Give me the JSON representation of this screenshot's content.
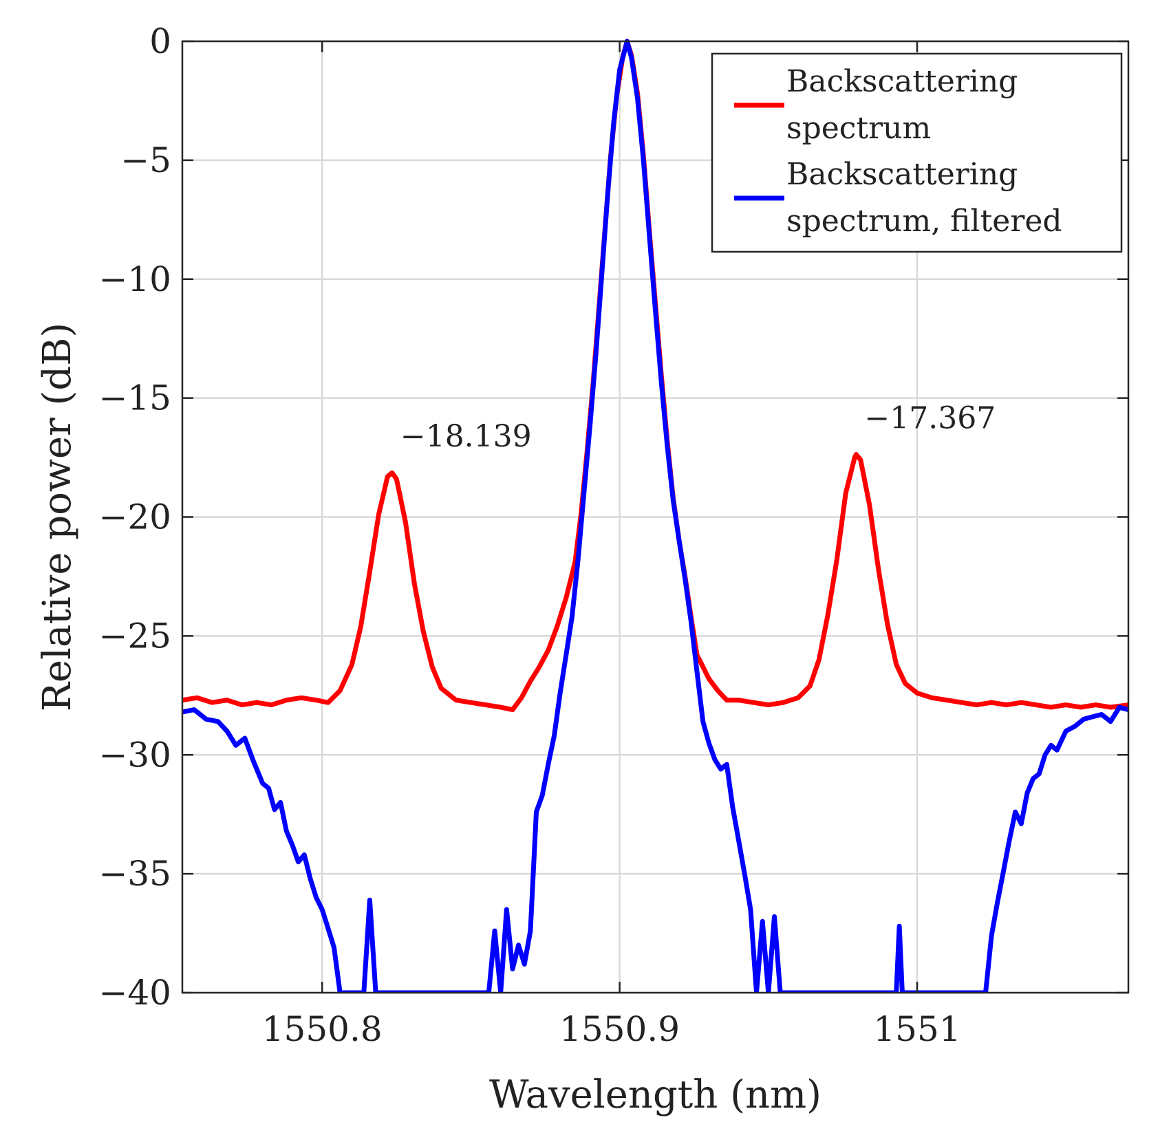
{
  "chart_data": {
    "type": "line",
    "xlabel": "Wavelength (nm)",
    "ylabel": "Relative power (dB)",
    "xlim": [
      1550.753,
      1551.071
    ],
    "ylim": [
      -40,
      0
    ],
    "xticks": [
      1550.8,
      1550.9,
      1551
    ],
    "xtick_labels": [
      "1550.8",
      "1550.9",
      "1551"
    ],
    "yticks": [
      0,
      -5,
      -10,
      -15,
      -20,
      -25,
      -30,
      -35,
      -40
    ],
    "ytick_labels": [
      "0",
      "−5",
      "−10",
      "−15",
      "−20",
      "−25",
      "−30",
      "−35",
      "−40"
    ],
    "grid": true,
    "legend": "top-right",
    "colors": {
      "red": "#ff0000",
      "blue": "#0000ff"
    },
    "series": [
      {
        "name": "Backscattering spectrum",
        "color": "#ff0000",
        "points": [
          [
            1550.753,
            -27.7
          ],
          [
            1550.758,
            -27.6
          ],
          [
            1550.763,
            -27.8
          ],
          [
            1550.768,
            -27.7
          ],
          [
            1550.773,
            -27.9
          ],
          [
            1550.778,
            -27.8
          ],
          [
            1550.783,
            -27.9
          ],
          [
            1550.788,
            -27.7
          ],
          [
            1550.793,
            -27.6
          ],
          [
            1550.798,
            -27.7
          ],
          [
            1550.802,
            -27.8
          ],
          [
            1550.806,
            -27.3
          ],
          [
            1550.81,
            -26.2
          ],
          [
            1550.813,
            -24.6
          ],
          [
            1550.816,
            -22.3
          ],
          [
            1550.819,
            -19.9
          ],
          [
            1550.822,
            -18.3
          ],
          [
            1550.8235,
            -18.139
          ],
          [
            1550.825,
            -18.4
          ],
          [
            1550.828,
            -20.2
          ],
          [
            1550.831,
            -22.8
          ],
          [
            1550.834,
            -24.8
          ],
          [
            1550.837,
            -26.3
          ],
          [
            1550.84,
            -27.2
          ],
          [
            1550.845,
            -27.7
          ],
          [
            1550.85,
            -27.8
          ],
          [
            1550.855,
            -27.9
          ],
          [
            1550.86,
            -28.0
          ],
          [
            1550.864,
            -28.1
          ],
          [
            1550.867,
            -27.6
          ],
          [
            1550.87,
            -26.9
          ],
          [
            1550.873,
            -26.3
          ],
          [
            1550.876,
            -25.6
          ],
          [
            1550.879,
            -24.6
          ],
          [
            1550.882,
            -23.4
          ],
          [
            1550.885,
            -21.9
          ],
          [
            1550.887,
            -19.9
          ],
          [
            1550.889,
            -17.3
          ],
          [
            1550.891,
            -14.5
          ],
          [
            1550.893,
            -11.3
          ],
          [
            1550.895,
            -8.0
          ],
          [
            1550.897,
            -4.8
          ],
          [
            1550.899,
            -2.3
          ],
          [
            1550.901,
            -0.7
          ],
          [
            1550.9025,
            0
          ],
          [
            1550.904,
            -0.6
          ],
          [
            1550.906,
            -2.2
          ],
          [
            1550.908,
            -4.8
          ],
          [
            1550.91,
            -8.0
          ],
          [
            1550.912,
            -11.0
          ],
          [
            1550.914,
            -14.0
          ],
          [
            1550.916,
            -16.8
          ],
          [
            1550.918,
            -19.2
          ],
          [
            1550.92,
            -21.0
          ],
          [
            1550.922,
            -22.5
          ],
          [
            1550.924,
            -24.2
          ],
          [
            1550.926,
            -25.8
          ],
          [
            1550.928,
            -26.3
          ],
          [
            1550.93,
            -26.8
          ],
          [
            1550.933,
            -27.3
          ],
          [
            1550.936,
            -27.7
          ],
          [
            1550.94,
            -27.7
          ],
          [
            1550.945,
            -27.8
          ],
          [
            1550.95,
            -27.9
          ],
          [
            1550.955,
            -27.8
          ],
          [
            1550.96,
            -27.6
          ],
          [
            1550.964,
            -27.1
          ],
          [
            1550.967,
            -26.0
          ],
          [
            1550.97,
            -24.1
          ],
          [
            1550.973,
            -21.8
          ],
          [
            1550.976,
            -19.0
          ],
          [
            1550.979,
            -17.5
          ],
          [
            1550.9795,
            -17.367
          ],
          [
            1550.981,
            -17.6
          ],
          [
            1550.984,
            -19.5
          ],
          [
            1550.987,
            -22.2
          ],
          [
            1550.99,
            -24.5
          ],
          [
            1550.993,
            -26.2
          ],
          [
            1550.996,
            -27.0
          ],
          [
            1551.0,
            -27.4
          ],
          [
            1551.005,
            -27.6
          ],
          [
            1551.01,
            -27.7
          ],
          [
            1551.015,
            -27.8
          ],
          [
            1551.02,
            -27.9
          ],
          [
            1551.025,
            -27.8
          ],
          [
            1551.03,
            -27.9
          ],
          [
            1551.035,
            -27.8
          ],
          [
            1551.04,
            -27.9
          ],
          [
            1551.045,
            -28.0
          ],
          [
            1551.05,
            -27.9
          ],
          [
            1551.055,
            -28.0
          ],
          [
            1551.06,
            -27.9
          ],
          [
            1551.065,
            -28.0
          ],
          [
            1551.071,
            -27.9
          ]
        ]
      },
      {
        "name": "Backscattering spectrum, filtered",
        "color": "#0000ff",
        "points": [
          [
            1550.753,
            -28.2
          ],
          [
            1550.757,
            -28.1
          ],
          [
            1550.761,
            -28.5
          ],
          [
            1550.765,
            -28.6
          ],
          [
            1550.768,
            -29.0
          ],
          [
            1550.771,
            -29.6
          ],
          [
            1550.774,
            -29.3
          ],
          [
            1550.777,
            -30.3
          ],
          [
            1550.78,
            -31.2
          ],
          [
            1550.782,
            -31.4
          ],
          [
            1550.784,
            -32.3
          ],
          [
            1550.786,
            -32.0
          ],
          [
            1550.788,
            -33.2
          ],
          [
            1550.79,
            -33.8
          ],
          [
            1550.792,
            -34.5
          ],
          [
            1550.794,
            -34.2
          ],
          [
            1550.796,
            -35.2
          ],
          [
            1550.798,
            -36.0
          ],
          [
            1550.8,
            -36.5
          ],
          [
            1550.802,
            -37.3
          ],
          [
            1550.804,
            -38.1
          ],
          [
            1550.806,
            -40.0
          ],
          [
            1550.814,
            -40.0
          ],
          [
            1550.816,
            -36.1
          ],
          [
            1550.818,
            -40.0
          ],
          [
            1550.856,
            -40.0
          ],
          [
            1550.858,
            -37.4
          ],
          [
            1550.86,
            -40.0
          ],
          [
            1550.862,
            -36.5
          ],
          [
            1550.864,
            -39.0
          ],
          [
            1550.866,
            -38.0
          ],
          [
            1550.868,
            -38.8
          ],
          [
            1550.87,
            -37.4
          ],
          [
            1550.872,
            -32.4
          ],
          [
            1550.874,
            -31.7
          ],
          [
            1550.876,
            -30.4
          ],
          [
            1550.878,
            -29.2
          ],
          [
            1550.88,
            -27.4
          ],
          [
            1550.882,
            -25.8
          ],
          [
            1550.884,
            -24.2
          ],
          [
            1550.886,
            -21.8
          ],
          [
            1550.888,
            -19.0
          ],
          [
            1550.89,
            -16.2
          ],
          [
            1550.892,
            -13.2
          ],
          [
            1550.894,
            -9.8
          ],
          [
            1550.896,
            -6.4
          ],
          [
            1550.898,
            -3.4
          ],
          [
            1550.9,
            -1.2
          ],
          [
            1550.9025,
            0
          ],
          [
            1550.904,
            -0.7
          ],
          [
            1550.906,
            -2.4
          ],
          [
            1550.908,
            -5.0
          ],
          [
            1550.91,
            -8.2
          ],
          [
            1550.912,
            -11.3
          ],
          [
            1550.914,
            -14.3
          ],
          [
            1550.916,
            -17.0
          ],
          [
            1550.918,
            -19.3
          ],
          [
            1550.92,
            -21.0
          ],
          [
            1550.922,
            -22.6
          ],
          [
            1550.924,
            -24.4
          ],
          [
            1550.926,
            -26.5
          ],
          [
            1550.928,
            -28.6
          ],
          [
            1550.93,
            -29.5
          ],
          [
            1550.932,
            -30.2
          ],
          [
            1550.934,
            -30.6
          ],
          [
            1550.936,
            -30.4
          ],
          [
            1550.938,
            -32.2
          ],
          [
            1550.94,
            -33.6
          ],
          [
            1550.942,
            -35.0
          ],
          [
            1550.944,
            -36.5
          ],
          [
            1550.946,
            -40.0
          ],
          [
            1550.948,
            -37.0
          ],
          [
            1550.95,
            -40.0
          ],
          [
            1550.952,
            -36.8
          ],
          [
            1550.954,
            -40.0
          ],
          [
            1550.993,
            -40.0
          ],
          [
            1550.994,
            -37.2
          ],
          [
            1550.995,
            -40.0
          ],
          [
            1551.023,
            -40.0
          ],
          [
            1551.025,
            -37.6
          ],
          [
            1551.027,
            -36.2
          ],
          [
            1551.029,
            -34.9
          ],
          [
            1551.031,
            -33.6
          ],
          [
            1551.033,
            -32.4
          ],
          [
            1551.035,
            -32.9
          ],
          [
            1551.037,
            -31.6
          ],
          [
            1551.039,
            -31.0
          ],
          [
            1551.041,
            -30.8
          ],
          [
            1551.043,
            -30.0
          ],
          [
            1551.045,
            -29.6
          ],
          [
            1551.047,
            -29.8
          ],
          [
            1551.05,
            -29.0
          ],
          [
            1551.053,
            -28.8
          ],
          [
            1551.056,
            -28.5
          ],
          [
            1551.059,
            -28.4
          ],
          [
            1551.062,
            -28.3
          ],
          [
            1551.065,
            -28.6
          ],
          [
            1551.068,
            -28.0
          ],
          [
            1551.071,
            -28.1
          ]
        ]
      }
    ],
    "annotations": [
      {
        "text": "−18.139",
        "x": 1550.8235,
        "y": -18.139
      },
      {
        "text": "−17.367",
        "x": 1550.9795,
        "y": -17.367
      }
    ],
    "legend_entries": [
      {
        "lines": [
          "Backscattering",
          "spectrum"
        ],
        "color": "#ff0000"
      },
      {
        "lines": [
          "Backscattering",
          "spectrum, filtered"
        ],
        "color": "#0000ff"
      }
    ]
  }
}
